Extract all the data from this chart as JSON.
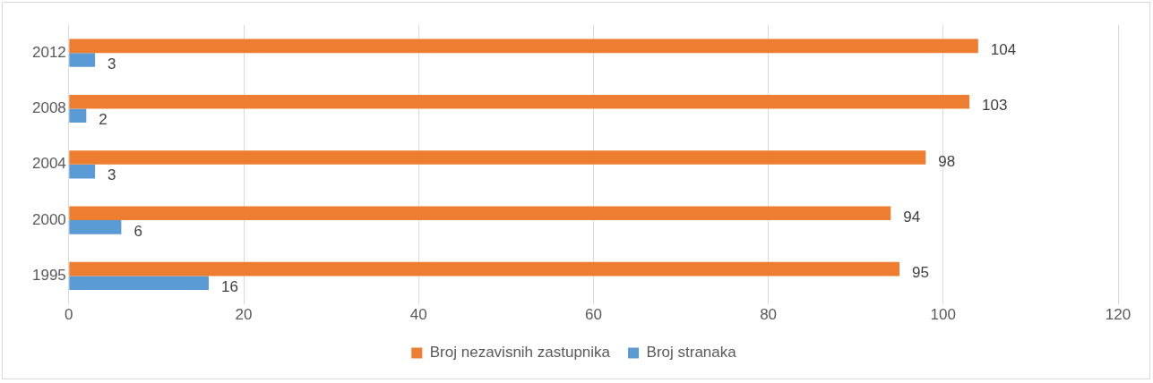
{
  "chart_data": {
    "type": "bar",
    "orientation": "horizontal",
    "categories": [
      "2012",
      "2008",
      "2004",
      "2000",
      "1995"
    ],
    "series": [
      {
        "name": "Broj nezavisnih zastupnika",
        "color": "#ed7d31",
        "values": [
          104,
          103,
          98,
          94,
          95
        ]
      },
      {
        "name": "Broj stranaka",
        "color": "#5b9bd5",
        "values": [
          3,
          2,
          3,
          6,
          16
        ]
      }
    ],
    "xlim": [
      0,
      120
    ],
    "xticks": [
      0,
      20,
      40,
      60,
      80,
      100,
      120
    ],
    "grid": "x",
    "legend": "bottom",
    "data_labels": true
  }
}
